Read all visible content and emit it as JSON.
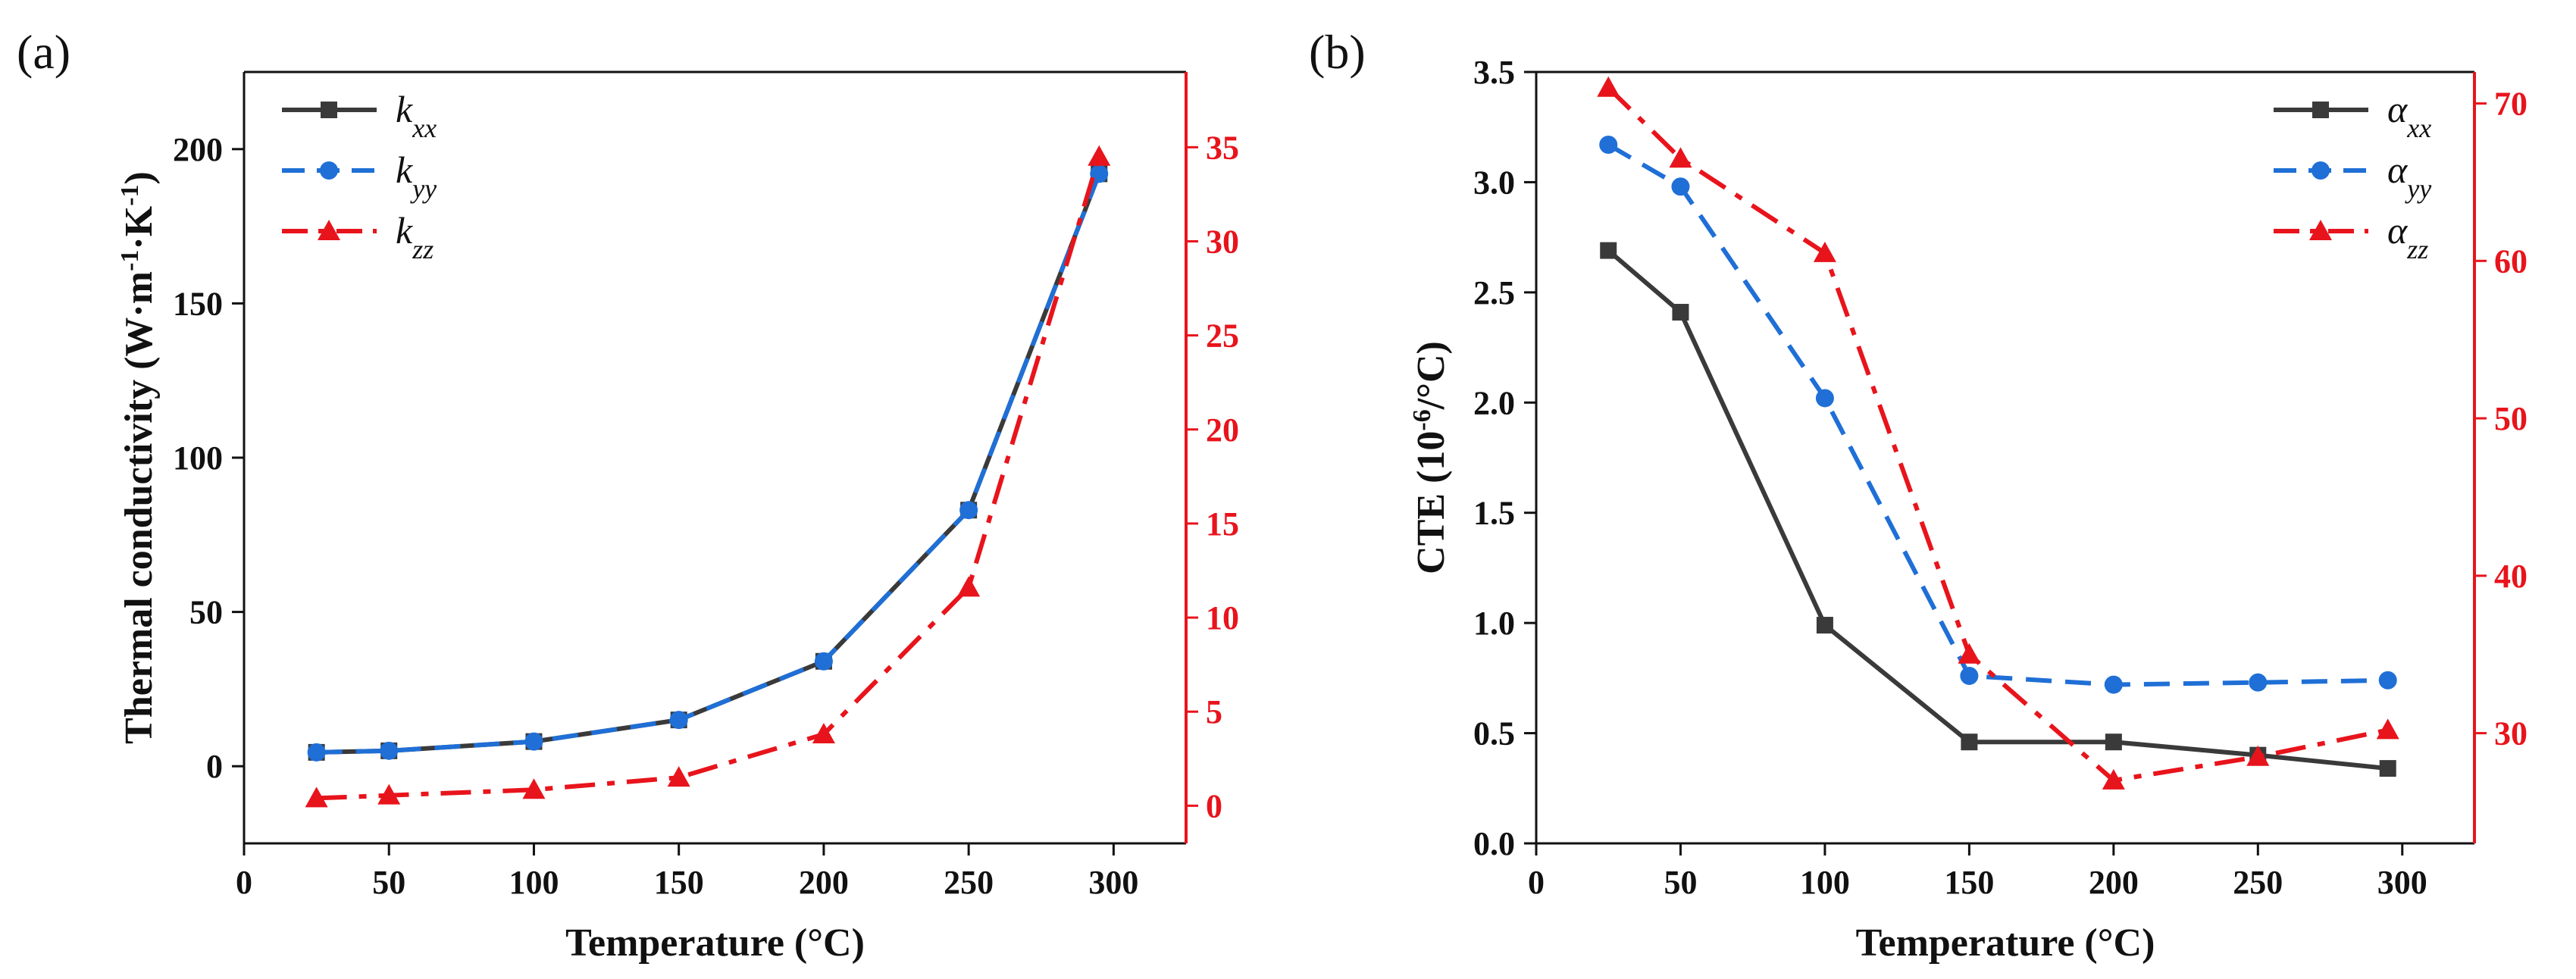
{
  "colors": {
    "xx": "#3a3a3a",
    "yy": "#1f6fd6",
    "zz": "#e8141c",
    "axis": "#111111",
    "right_axis": "#e8141c"
  },
  "chart_data": [
    {
      "panel_label": "(a)",
      "type": "line",
      "xlabel": "Temperature (°C)",
      "ylabel_main": "Thermal conductivity (W·m",
      "ylabel_exp1": "-1",
      "ylabel_mid": "·K",
      "ylabel_exp2": "-1",
      "ylabel_end": ")",
      "xlim": [
        0,
        325
      ],
      "ylim": [
        -25,
        225
      ],
      "y2lim": [
        -2,
        39
      ],
      "xticks": [
        0,
        50,
        100,
        150,
        200,
        250,
        300
      ],
      "yticks": [
        0,
        50,
        100,
        150,
        200
      ],
      "y2ticks": [
        0,
        5,
        10,
        15,
        20,
        25,
        30,
        35
      ],
      "legend_position": "top-left",
      "series": [
        {
          "key": "xx",
          "name": "k",
          "sub": "xx",
          "axis": "left",
          "style": "solid",
          "marker": "square",
          "x": [
            25,
            50,
            100,
            150,
            200,
            250,
            295
          ],
          "values": [
            4.5,
            5.0,
            8.0,
            15.0,
            34.0,
            83.0,
            192.0
          ]
        },
        {
          "key": "yy",
          "name": "k",
          "sub": "yy",
          "axis": "left",
          "style": "dash",
          "marker": "circle",
          "x": [
            25,
            50,
            100,
            150,
            200,
            250,
            295
          ],
          "values": [
            4.5,
            5.0,
            8.0,
            15.0,
            34.0,
            83.0,
            192.0
          ]
        },
        {
          "key": "zz",
          "name": "k",
          "sub": "zz",
          "axis": "right",
          "style": "dashdot",
          "marker": "triangle",
          "x": [
            25,
            50,
            100,
            150,
            200,
            250,
            295
          ],
          "values": [
            0.4,
            0.55,
            0.85,
            1.5,
            3.8,
            11.6,
            34.5
          ]
        }
      ]
    },
    {
      "panel_label": "(b)",
      "type": "line",
      "xlabel": "Temperature (°C)",
      "ylabel_main": "CTE (10",
      "ylabel_exp1": "-6",
      "ylabel_mid": "/°C)",
      "ylabel_exp2": "",
      "ylabel_end": "",
      "xlim": [
        0,
        325
      ],
      "ylim": [
        0.0,
        3.5
      ],
      "y2lim": [
        23,
        72
      ],
      "xticks": [
        0,
        50,
        100,
        150,
        200,
        250,
        300
      ],
      "yticks": [
        0.0,
        0.5,
        1.0,
        1.5,
        2.0,
        2.5,
        3.0,
        3.5
      ],
      "y2ticks": [
        30,
        40,
        50,
        60,
        70
      ],
      "legend_position": "top-right",
      "series": [
        {
          "key": "xx",
          "name": "α",
          "sub": "xx",
          "axis": "left",
          "style": "solid",
          "marker": "square",
          "x": [
            25,
            50,
            100,
            150,
            200,
            250,
            295
          ],
          "values": [
            2.69,
            2.41,
            0.99,
            0.46,
            0.46,
            0.4,
            0.34
          ]
        },
        {
          "key": "yy",
          "name": "α",
          "sub": "yy",
          "axis": "left",
          "style": "dash",
          "marker": "circle",
          "x": [
            25,
            50,
            100,
            150,
            200,
            250,
            295
          ],
          "values": [
            3.17,
            2.98,
            2.02,
            0.76,
            0.72,
            0.73,
            0.74
          ]
        },
        {
          "key": "zz",
          "name": "α",
          "sub": "zz",
          "axis": "right",
          "style": "dashdot",
          "marker": "triangle",
          "x": [
            25,
            50,
            100,
            150,
            200,
            250,
            295
          ],
          "values": [
            71.0,
            66.5,
            60.5,
            35.0,
            27.0,
            28.5,
            30.2
          ]
        }
      ]
    }
  ]
}
